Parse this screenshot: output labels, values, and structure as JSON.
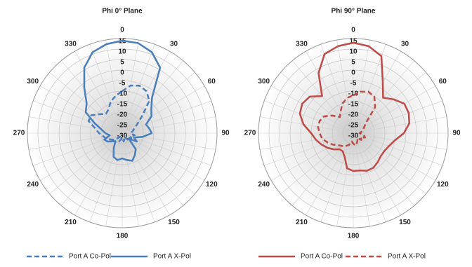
{
  "chart_data": [
    {
      "type": "polar",
      "title": "Phi 0° Plane",
      "theta": [
        0,
        10,
        20,
        30,
        40,
        50,
        60,
        70,
        80,
        90,
        100,
        110,
        120,
        130,
        140,
        150,
        160,
        170,
        180,
        190,
        200,
        210,
        220,
        230,
        240,
        250,
        260,
        270,
        280,
        290,
        300,
        310,
        320,
        330,
        340,
        350
      ],
      "thetaticks": [
        0,
        30,
        60,
        90,
        120,
        150,
        180,
        210,
        240,
        270,
        300,
        330
      ],
      "rlim": [
        -30,
        15
      ],
      "rticks": [
        15,
        10,
        5,
        0,
        -5,
        -10,
        -15,
        -20,
        -25,
        -30
      ],
      "series": [
        {
          "name": "Port A Co-Pol",
          "color": "#4a7ebb",
          "dashed": true,
          "values": [
            -10,
            -7,
            -6,
            -7,
            -10,
            -18,
            -22,
            -24,
            -25,
            -26,
            -24,
            -26,
            -25,
            -27,
            -26,
            -28,
            -27,
            -26,
            -28,
            -27,
            -26,
            -28,
            -27,
            -25,
            -24,
            -22,
            -21,
            -19,
            -17,
            -13,
            -13,
            -16,
            -18,
            -17,
            -14,
            -12
          ]
        },
        {
          "name": "Port A X-Pol",
          "color": "#4a7ebb",
          "dashed": false,
          "values": [
            14,
            13.5,
            11,
            6,
            -8,
            -12,
            -14,
            -18,
            -17,
            -16,
            -20,
            -24,
            -22,
            -26,
            -20,
            -18,
            -16,
            -17,
            -18,
            -17,
            -18,
            -22,
            -25,
            -24,
            -22,
            -21,
            -24,
            -22,
            -20,
            -16,
            -10,
            -8,
            -2,
            6,
            11,
            13
          ]
        }
      ]
    },
    {
      "type": "polar",
      "title": "Phi 90° Plane",
      "theta": [
        0,
        10,
        20,
        30,
        40,
        50,
        60,
        70,
        80,
        90,
        100,
        110,
        120,
        130,
        140,
        150,
        160,
        170,
        180,
        190,
        200,
        210,
        220,
        230,
        240,
        250,
        260,
        270,
        280,
        290,
        300,
        310,
        320,
        330,
        340,
        350
      ],
      "thetaticks": [
        0,
        30,
        60,
        90,
        120,
        150,
        180,
        210,
        240,
        270,
        300,
        330
      ],
      "rlim": [
        -30,
        15
      ],
      "rticks": [
        15,
        10,
        5,
        0,
        -5,
        -10,
        -15,
        -20,
        -25,
        -30
      ],
      "series": [
        {
          "name": "Port A Co-Pol",
          "color": "#be4b48",
          "dashed": false,
          "values": [
            13,
            12,
            9,
            -2,
            -8,
            -5,
            -2,
            -2,
            -3,
            -6,
            -10,
            -12,
            -13,
            -13,
            -12,
            -11,
            -11,
            -12,
            -12,
            -13,
            -18,
            -20,
            -20,
            -18,
            -16,
            -14,
            -12,
            -10,
            -6,
            -3,
            -2,
            -3,
            -7,
            3,
            10,
            12
          ]
        },
        {
          "name": "Port A X-Pol",
          "color": "#be4b48",
          "dashed": true,
          "values": [
            -12,
            -10,
            -9,
            -10,
            -14,
            -22,
            -24,
            -25,
            -26,
            -27,
            -25,
            -24,
            -26,
            -25,
            -27,
            -26,
            -25,
            -24,
            -25,
            -26,
            -24,
            -23,
            -22,
            -21,
            -19,
            -17,
            -15,
            -14,
            -13,
            -13,
            -14,
            -17,
            -20,
            -18,
            -15,
            -13
          ]
        }
      ]
    }
  ]
}
